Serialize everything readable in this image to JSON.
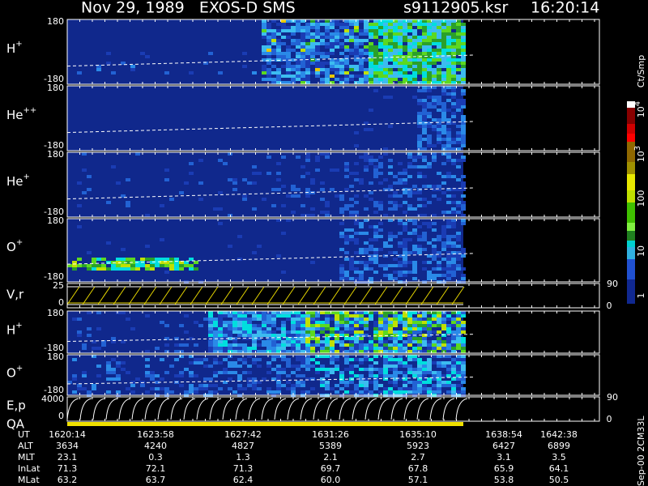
{
  "header": {
    "title": "Nov 29, 1989   EXOS-D SMS",
    "file": "s9112905.ksr",
    "time": "16:20:14"
  },
  "panels": [
    {
      "label": {
        "base": "H",
        "sup": "+"
      },
      "top": "180",
      "bottom": "-180"
    },
    {
      "label": {
        "base": "He",
        "sup": "++"
      },
      "top": "180",
      "bottom": "-180"
    },
    {
      "label": {
        "base": "He",
        "sup": "+"
      },
      "top": "180",
      "bottom": "-180"
    },
    {
      "label": {
        "base": "O",
        "sup": "+"
      },
      "top": "180",
      "bottom": "-180"
    },
    {
      "label": {
        "base": "V,r"
      },
      "top": "25",
      "bottom": "0",
      "right_top": "90",
      "right_bottom": "0"
    },
    {
      "label": {
        "base": "H",
        "sup": "+"
      },
      "top": "180",
      "bottom": "-180"
    },
    {
      "label": {
        "base": "O",
        "sup": "+"
      },
      "top": "180",
      "bottom": "-180"
    },
    {
      "label": {
        "base": "E,p"
      },
      "label2": "QA",
      "top": "4000",
      "bottom": "0",
      "right_top": "90",
      "right_bottom": "0"
    }
  ],
  "colorbar": {
    "unit": "Ct/Smp",
    "ticks": [
      {
        "base": "10",
        "sup": "4"
      },
      {
        "base": "10",
        "sup": "3"
      },
      {
        "base": "100"
      },
      {
        "base": "10"
      },
      {
        "base": "1"
      }
    ]
  },
  "table": {
    "rows": [
      {
        "label": "UT",
        "values": [
          "1620:14",
          "1623:58",
          "1627:42",
          "1631:26",
          "1635:10",
          "1638:54",
          "1642:38"
        ]
      },
      {
        "label": "ALT",
        "values": [
          "3634",
          "4240",
          "4827",
          "5389",
          "5923",
          "6427",
          "6899"
        ]
      },
      {
        "label": "MLT",
        "values": [
          "23.1",
          "0.3",
          "1.3",
          "2.1",
          "2.7",
          "3.1",
          "3.5"
        ]
      },
      {
        "label": "InLat",
        "values": [
          "71.3",
          "72.1",
          "71.3",
          "69.7",
          "67.8",
          "65.9",
          "64.1"
        ]
      },
      {
        "label": "MLat",
        "values": [
          "63.2",
          "63.7",
          "62.4",
          "60.0",
          "57.1",
          "53.8",
          "50.5"
        ]
      }
    ]
  },
  "footer": "Sep-00 2CM33L"
}
